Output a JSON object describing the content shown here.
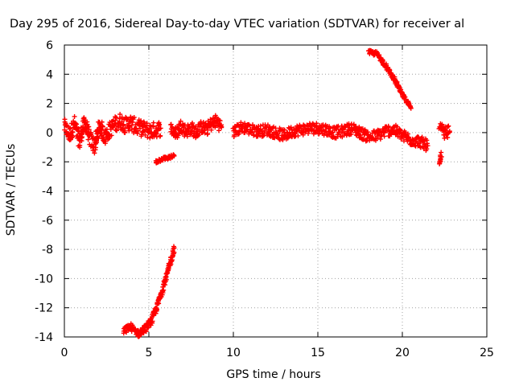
{
  "chart_data": {
    "type": "scatter",
    "title": "Day 295 of 2016, Sidereal Day-to-day VTEC variation (SDTVAR) for receiver al",
    "xlabel": "GPS time / hours",
    "ylabel": "SDTVAR / TECUs",
    "xlim": [
      0,
      25
    ],
    "ylim": [
      -14,
      6
    ],
    "xticks": [
      0,
      5,
      10,
      15,
      20,
      25
    ],
    "yticks": [
      -14,
      -12,
      -10,
      -8,
      -6,
      -4,
      -2,
      0,
      2,
      4,
      6
    ],
    "grid": true,
    "marker": "plus",
    "series": [
      {
        "name": "SDTVAR",
        "color": "#ff0000",
        "segments": [
          {
            "points": [
              [
                0.0,
                0.4
              ],
              [
                0.3,
                -0.2
              ],
              [
                0.6,
                0.6
              ],
              [
                0.9,
                -0.6
              ],
              [
                1.2,
                0.7
              ],
              [
                1.5,
                -0.4
              ],
              [
                1.8,
                -0.9
              ],
              [
                2.1,
                0.5
              ],
              [
                2.4,
                -0.3
              ],
              [
                2.7,
                0.2
              ],
              [
                3.0,
                0.6
              ],
              [
                3.3,
                0.8
              ],
              [
                3.6,
                0.5
              ],
              [
                3.9,
                0.7
              ],
              [
                4.2,
                0.4
              ],
              [
                4.5,
                0.3
              ],
              [
                4.8,
                0.2
              ],
              [
                5.1,
                0.1
              ],
              [
                5.4,
                0.2
              ],
              [
                5.7,
                0.3
              ]
            ],
            "spread": 0.55
          },
          {
            "points": [
              [
                6.3,
                0.3
              ],
              [
                6.6,
                -0.1
              ],
              [
                6.9,
                0.5
              ],
              [
                7.2,
                0.1
              ],
              [
                7.5,
                0.3
              ],
              [
                7.8,
                0.0
              ],
              [
                8.1,
                0.4
              ],
              [
                8.4,
                0.2
              ],
              [
                8.7,
                0.6
              ],
              [
                9.0,
                0.8
              ],
              [
                9.3,
                0.4
              ]
            ],
            "spread": 0.45
          },
          {
            "points": [
              [
                10.0,
                0.0
              ],
              [
                10.5,
                0.4
              ],
              [
                11.0,
                0.2
              ],
              [
                11.5,
                0.1
              ],
              [
                12.0,
                0.2
              ],
              [
                12.5,
                0.0
              ],
              [
                13.0,
                -0.2
              ],
              [
                13.5,
                0.1
              ],
              [
                14.0,
                0.2
              ],
              [
                14.5,
                0.3
              ],
              [
                15.0,
                0.3
              ],
              [
                15.5,
                0.2
              ],
              [
                16.0,
                0.0
              ],
              [
                16.5,
                0.1
              ],
              [
                17.0,
                0.3
              ],
              [
                17.5,
                0.0
              ],
              [
                18.0,
                -0.3
              ],
              [
                18.5,
                -0.2
              ],
              [
                19.0,
                0.1
              ],
              [
                19.5,
                0.2
              ],
              [
                20.0,
                -0.2
              ],
              [
                20.5,
                -0.5
              ],
              [
                21.0,
                -0.6
              ],
              [
                21.5,
                -0.9
              ]
            ],
            "spread": 0.4
          },
          {
            "points": [
              [
                22.2,
                0.3
              ],
              [
                22.5,
                0.0
              ],
              [
                22.8,
                0.1
              ]
            ],
            "spread": 0.4
          },
          {
            "points": [
              [
                22.3,
                -1.5
              ],
              [
                22.2,
                -2.0
              ]
            ],
            "spread": 0.25
          },
          {
            "points": [
              [
                18.0,
                5.5
              ],
              [
                18.5,
                5.4
              ],
              [
                19.0,
                4.6
              ],
              [
                19.5,
                3.7
              ],
              [
                20.0,
                2.6
              ],
              [
                20.5,
                1.7
              ]
            ],
            "spread": 0.15
          },
          {
            "points": [
              [
                5.4,
                -2.0
              ],
              [
                5.8,
                -1.8
              ],
              [
                6.2,
                -1.7
              ],
              [
                6.5,
                -1.6
              ]
            ],
            "spread": 0.12
          },
          {
            "points": [
              [
                3.5,
                -13.6
              ],
              [
                3.9,
                -13.3
              ],
              [
                4.4,
                -13.8
              ],
              [
                4.8,
                -13.4
              ],
              [
                5.2,
                -12.8
              ],
              [
                5.6,
                -11.5
              ],
              [
                6.0,
                -10.0
              ],
              [
                6.3,
                -8.8
              ],
              [
                6.5,
                -7.9
              ]
            ],
            "spread": 0.25
          }
        ]
      }
    ]
  }
}
